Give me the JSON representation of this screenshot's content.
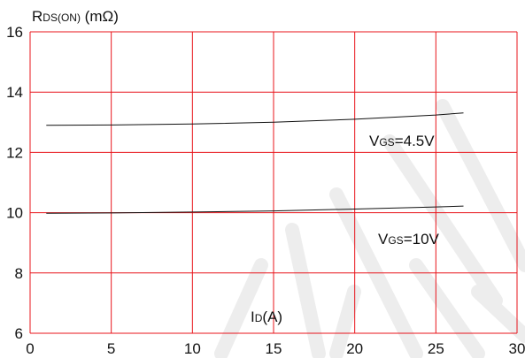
{
  "chart_data": {
    "type": "line",
    "title": "",
    "ylabel": {
      "main": "R",
      "sub": "DS(ON)",
      "unit": " (mΩ)"
    },
    "xlabel": {
      "main": "I",
      "sub": "D",
      "unit": "(A)"
    },
    "xlim": [
      0,
      30
    ],
    "ylim": [
      6,
      16
    ],
    "xticks": [
      "0",
      "5",
      "10",
      "15",
      "20",
      "25",
      "30"
    ],
    "yticks": [
      "6",
      "8",
      "10",
      "12",
      "14",
      "16"
    ],
    "grid": true,
    "colors": {
      "grid": "#e8141b",
      "line": "#111111",
      "watermark": "#ededed"
    },
    "series": [
      {
        "name": "VGS=4.5V",
        "label": {
          "main": "V",
          "sub": "GS",
          "rest": "=4.5V"
        },
        "points": [
          [
            1,
            12.9
          ],
          [
            5,
            12.91
          ],
          [
            10,
            12.94
          ],
          [
            15,
            13.0
          ],
          [
            20,
            13.1
          ],
          [
            25,
            13.24
          ],
          [
            26.7,
            13.31
          ]
        ]
      },
      {
        "name": "VGS=10V",
        "label": {
          "main": "V",
          "sub": "GS",
          "rest": "=10V"
        },
        "points": [
          [
            1,
            9.98
          ],
          [
            5,
            9.99
          ],
          [
            10,
            10.02
          ],
          [
            15,
            10.06
          ],
          [
            20,
            10.12
          ],
          [
            25,
            10.19
          ],
          [
            26.7,
            10.22
          ]
        ]
      }
    ]
  }
}
